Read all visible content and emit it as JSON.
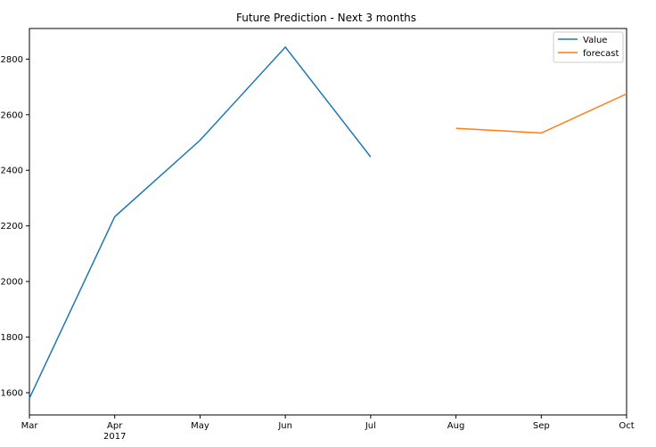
{
  "chart_data": {
    "type": "line",
    "title": "Future Prediction - Next 3 months",
    "xlabel": "",
    "ylabel": "",
    "categories": [
      "Mar",
      "Apr",
      "May",
      "Jun",
      "Jul",
      "Aug",
      "Sep",
      "Oct"
    ],
    "year_label": "2017",
    "ylim": [
      1520,
      2910
    ],
    "yticks": [
      1600,
      1800,
      2000,
      2200,
      2400,
      2600,
      2800
    ],
    "grid": false,
    "legend": "top-right",
    "series": [
      {
        "name": "Value",
        "color": "#1f77b4",
        "points": [
          {
            "x": "Mar",
            "y": 1580
          },
          {
            "x": "Apr",
            "y": 2233
          },
          {
            "x": "May",
            "y": 2508
          },
          {
            "x": "Jun",
            "y": 2843
          },
          {
            "x": "Jul",
            "y": 2448
          }
        ]
      },
      {
        "name": "forecast",
        "color": "#ff7f0e",
        "points": [
          {
            "x": "Aug",
            "y": 2551
          },
          {
            "x": "Sep",
            "y": 2534
          },
          {
            "x": "Oct",
            "y": 2675
          }
        ]
      }
    ]
  }
}
